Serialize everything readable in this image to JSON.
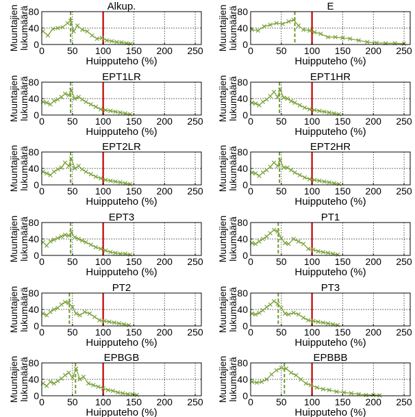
{
  "figure": {
    "colors": {
      "series": "#7ba23a",
      "reference_line": "#c00000",
      "dashed_line": "#6e9a2a",
      "grid": "#000000",
      "axes": "#000000"
    },
    "marker": "x"
  },
  "chart_data": [
    {
      "type": "line",
      "title": "Alkup.",
      "xlabel": "Huipputeho (%)",
      "ylabel": "Muuntajien lukumäärä",
      "xlim": [
        0,
        260
      ],
      "ylim": [
        0,
        80
      ],
      "xticks": [
        0,
        50,
        100,
        150,
        200,
        250
      ],
      "yticks": [
        0,
        40,
        80
      ],
      "grid": true,
      "ref_line_x": 100,
      "dashed_line_x": 47,
      "x": [
        2,
        10,
        18,
        26,
        34,
        42,
        47,
        52,
        58,
        66,
        74,
        82,
        90,
        98,
        106,
        114,
        122,
        130,
        138,
        145
      ],
      "y": [
        32,
        22,
        38,
        40,
        42,
        52,
        58,
        32,
        46,
        36,
        32,
        22,
        14,
        16,
        10,
        8,
        6,
        5,
        3,
        2
      ]
    },
    {
      "type": "line",
      "title": "E",
      "xlabel": "Huipputeho (%)",
      "ylabel": "Muuntajien lukumäärä",
      "xlim": [
        0,
        260
      ],
      "ylim": [
        0,
        80
      ],
      "xticks": [
        0,
        50,
        100,
        150,
        200,
        250
      ],
      "yticks": [
        0,
        40,
        80
      ],
      "grid": true,
      "ref_line_x": 100,
      "dashed_line_x": 72,
      "x": [
        2,
        12,
        22,
        32,
        42,
        52,
        62,
        70,
        78,
        86,
        96,
        104,
        114,
        126,
        138,
        150,
        162,
        176,
        190,
        205,
        220,
        235,
        250
      ],
      "y": [
        36,
        34,
        44,
        48,
        52,
        50,
        56,
        60,
        46,
        36,
        34,
        30,
        26,
        18,
        18,
        16,
        14,
        10,
        6,
        4,
        3,
        3,
        2
      ]
    },
    {
      "type": "line",
      "title": "EPT1LR",
      "xlabel": "Huipputeho (%)",
      "ylabel": "Muuntajien lukumäärä",
      "xlim": [
        0,
        260
      ],
      "ylim": [
        0,
        80
      ],
      "xticks": [
        0,
        50,
        100,
        150,
        200,
        250
      ],
      "yticks": [
        0,
        40,
        80
      ],
      "grid": true,
      "ref_line_x": 100,
      "dashed_line_x": 47,
      "x": [
        2,
        8,
        14,
        20,
        26,
        32,
        38,
        44,
        48,
        54,
        60,
        66,
        72,
        80,
        88,
        96,
        104,
        112,
        120,
        128,
        136,
        144
      ],
      "y": [
        32,
        30,
        26,
        34,
        38,
        44,
        52,
        48,
        60,
        40,
        44,
        38,
        32,
        26,
        20,
        14,
        12,
        10,
        8,
        6,
        4,
        2
      ]
    },
    {
      "type": "line",
      "title": "EPT1HR",
      "xlabel": "Huipputeho (%)",
      "ylabel": "Muuntajien lukumäärä",
      "xlim": [
        0,
        260
      ],
      "ylim": [
        0,
        80
      ],
      "xticks": [
        0,
        50,
        100,
        150,
        200,
        250
      ],
      "yticks": [
        0,
        40,
        80
      ],
      "grid": true,
      "ref_line_x": 100,
      "dashed_line_x": 47,
      "x": [
        2,
        8,
        14,
        20,
        26,
        32,
        38,
        44,
        48,
        54,
        60,
        66,
        72,
        80,
        88,
        96,
        104,
        112,
        120,
        128,
        136,
        144
      ],
      "y": [
        30,
        28,
        24,
        32,
        38,
        46,
        56,
        44,
        62,
        42,
        40,
        34,
        30,
        24,
        18,
        14,
        12,
        10,
        8,
        6,
        4,
        2
      ]
    },
    {
      "type": "line",
      "title": "EPT2LR",
      "xlabel": "Huipputeho (%)",
      "ylabel": "Muuntajien lukumäärä",
      "xlim": [
        0,
        260
      ],
      "ylim": [
        0,
        80
      ],
      "xticks": [
        0,
        50,
        100,
        150,
        200,
        250
      ],
      "yticks": [
        0,
        40,
        80
      ],
      "grid": true,
      "ref_line_x": 100,
      "dashed_line_x": 47,
      "x": [
        2,
        8,
        14,
        20,
        26,
        32,
        38,
        44,
        48,
        54,
        60,
        66,
        72,
        80,
        88,
        96,
        104,
        112,
        120,
        128,
        136,
        144
      ],
      "y": [
        32,
        28,
        24,
        32,
        38,
        42,
        54,
        46,
        64,
        40,
        46,
        38,
        32,
        26,
        20,
        16,
        12,
        10,
        8,
        6,
        4,
        2
      ]
    },
    {
      "type": "line",
      "title": "EPT2HR",
      "xlabel": "Huipputeho (%)",
      "ylabel": "Muuntajien lukumäärä",
      "xlim": [
        0,
        260
      ],
      "ylim": [
        0,
        80
      ],
      "xticks": [
        0,
        50,
        100,
        150,
        200,
        250
      ],
      "yticks": [
        0,
        40,
        80
      ],
      "grid": true,
      "ref_line_x": 100,
      "dashed_line_x": 47,
      "x": [
        2,
        8,
        14,
        20,
        26,
        32,
        38,
        44,
        48,
        54,
        60,
        66,
        72,
        80,
        88,
        96,
        104,
        112,
        120,
        128,
        136,
        144
      ],
      "y": [
        30,
        28,
        22,
        30,
        36,
        44,
        54,
        46,
        60,
        42,
        42,
        36,
        30,
        24,
        18,
        14,
        12,
        10,
        8,
        6,
        4,
        2
      ]
    },
    {
      "type": "line",
      "title": "EPT3",
      "xlabel": "Huipputeho (%)",
      "ylabel": "Muuntajien lukumäärä",
      "xlim": [
        0,
        260
      ],
      "ylim": [
        0,
        80
      ],
      "xticks": [
        0,
        50,
        100,
        150,
        200,
        250
      ],
      "yticks": [
        0,
        40,
        80
      ],
      "grid": true,
      "ref_line_x": 100,
      "dashed_line_x": 47,
      "x": [
        2,
        8,
        14,
        20,
        26,
        32,
        38,
        44,
        48,
        54,
        60,
        66,
        72,
        80,
        88,
        96,
        104,
        112,
        120,
        128,
        136,
        144
      ],
      "y": [
        32,
        24,
        34,
        38,
        42,
        46,
        50,
        48,
        56,
        44,
        40,
        36,
        32,
        26,
        20,
        16,
        12,
        8,
        6,
        4,
        4,
        2
      ]
    },
    {
      "type": "line",
      "title": "PT1",
      "xlabel": "Huipputeho (%)",
      "ylabel": "Muuntajien lukumäärä",
      "xlim": [
        0,
        260
      ],
      "ylim": [
        0,
        80
      ],
      "xticks": [
        0,
        50,
        100,
        150,
        200,
        250
      ],
      "yticks": [
        0,
        40,
        80
      ],
      "grid": true,
      "ref_line_x": 100,
      "dashed_line_x": 45,
      "x": [
        2,
        8,
        14,
        20,
        26,
        32,
        38,
        44,
        50,
        56,
        62,
        70,
        78,
        86,
        94,
        102,
        110,
        118,
        126,
        134,
        142
      ],
      "y": [
        30,
        28,
        34,
        40,
        46,
        54,
        62,
        58,
        42,
        30,
        28,
        40,
        34,
        28,
        16,
        14,
        10,
        8,
        6,
        4,
        2
      ]
    },
    {
      "type": "line",
      "title": "PT2",
      "xlabel": "Huipputeho (%)",
      "ylabel": "Muuntajien lukumäärä",
      "xlim": [
        0,
        260
      ],
      "ylim": [
        0,
        80
      ],
      "xticks": [
        0,
        50,
        100,
        150,
        200,
        250
      ],
      "yticks": [
        0,
        40,
        80
      ],
      "grid": true,
      "ref_line_x": 100,
      "dashed_line_x": 45,
      "x": [
        2,
        8,
        14,
        20,
        26,
        32,
        38,
        44,
        50,
        56,
        62,
        70,
        78,
        86,
        94,
        102,
        110,
        118,
        126,
        134,
        142
      ],
      "y": [
        30,
        26,
        34,
        40,
        44,
        52,
        58,
        56,
        46,
        30,
        26,
        34,
        30,
        22,
        14,
        12,
        10,
        8,
        6,
        4,
        2
      ]
    },
    {
      "type": "line",
      "title": "PT3",
      "xlabel": "Huipputeho (%)",
      "ylabel": "Muuntajien lukumäärä",
      "xlim": [
        0,
        260
      ],
      "ylim": [
        0,
        80
      ],
      "xticks": [
        0,
        50,
        100,
        150,
        200,
        250
      ],
      "yticks": [
        0,
        40,
        80
      ],
      "grid": true,
      "ref_line_x": 100,
      "dashed_line_x": 45,
      "x": [
        2,
        8,
        14,
        20,
        26,
        32,
        38,
        44,
        50,
        56,
        62,
        70,
        78,
        86,
        94,
        102,
        110,
        118,
        126,
        134,
        142
      ],
      "y": [
        30,
        28,
        32,
        38,
        46,
        52,
        60,
        54,
        44,
        30,
        28,
        32,
        28,
        20,
        14,
        12,
        10,
        8,
        6,
        4,
        2
      ]
    },
    {
      "type": "line",
      "title": "EPBGB",
      "xlabel": "Huipputeho (%)",
      "ylabel": "Muuntajien lukumäärä",
      "xlim": [
        0,
        260
      ],
      "ylim": [
        0,
        80
      ],
      "xticks": [
        0,
        50,
        100,
        150,
        200,
        250
      ],
      "yticks": [
        0,
        40,
        80
      ],
      "grid": true,
      "ref_line_x": 100,
      "dashed_line_x": 55,
      "x": [
        2,
        8,
        14,
        20,
        26,
        32,
        38,
        44,
        50,
        56,
        62,
        68,
        76,
        84,
        92,
        100,
        108,
        116,
        124,
        132,
        140,
        148,
        155
      ],
      "y": [
        30,
        24,
        34,
        30,
        36,
        42,
        50,
        56,
        44,
        66,
        40,
        46,
        30,
        26,
        22,
        18,
        14,
        12,
        8,
        6,
        4,
        4,
        2
      ]
    },
    {
      "type": "line",
      "title": "EPBBB",
      "xlabel": "Huipputeho (%)",
      "ylabel": "Muuntajien lukumäärä",
      "xlim": [
        0,
        260
      ],
      "ylim": [
        0,
        80
      ],
      "xticks": [
        0,
        50,
        100,
        150,
        200,
        250
      ],
      "yticks": [
        0,
        40,
        80
      ],
      "grid": true,
      "ref_line_x": 100,
      "dashed_line_x": 55,
      "x": [
        2,
        10,
        18,
        26,
        34,
        42,
        50,
        58,
        66,
        74,
        82,
        90,
        98,
        108,
        118,
        128,
        140,
        152,
        164,
        176,
        188,
        200,
        210
      ],
      "y": [
        34,
        32,
        34,
        40,
        52,
        62,
        68,
        66,
        56,
        50,
        40,
        30,
        26,
        20,
        16,
        14,
        10,
        8,
        6,
        4,
        2,
        2,
        1
      ]
    }
  ]
}
